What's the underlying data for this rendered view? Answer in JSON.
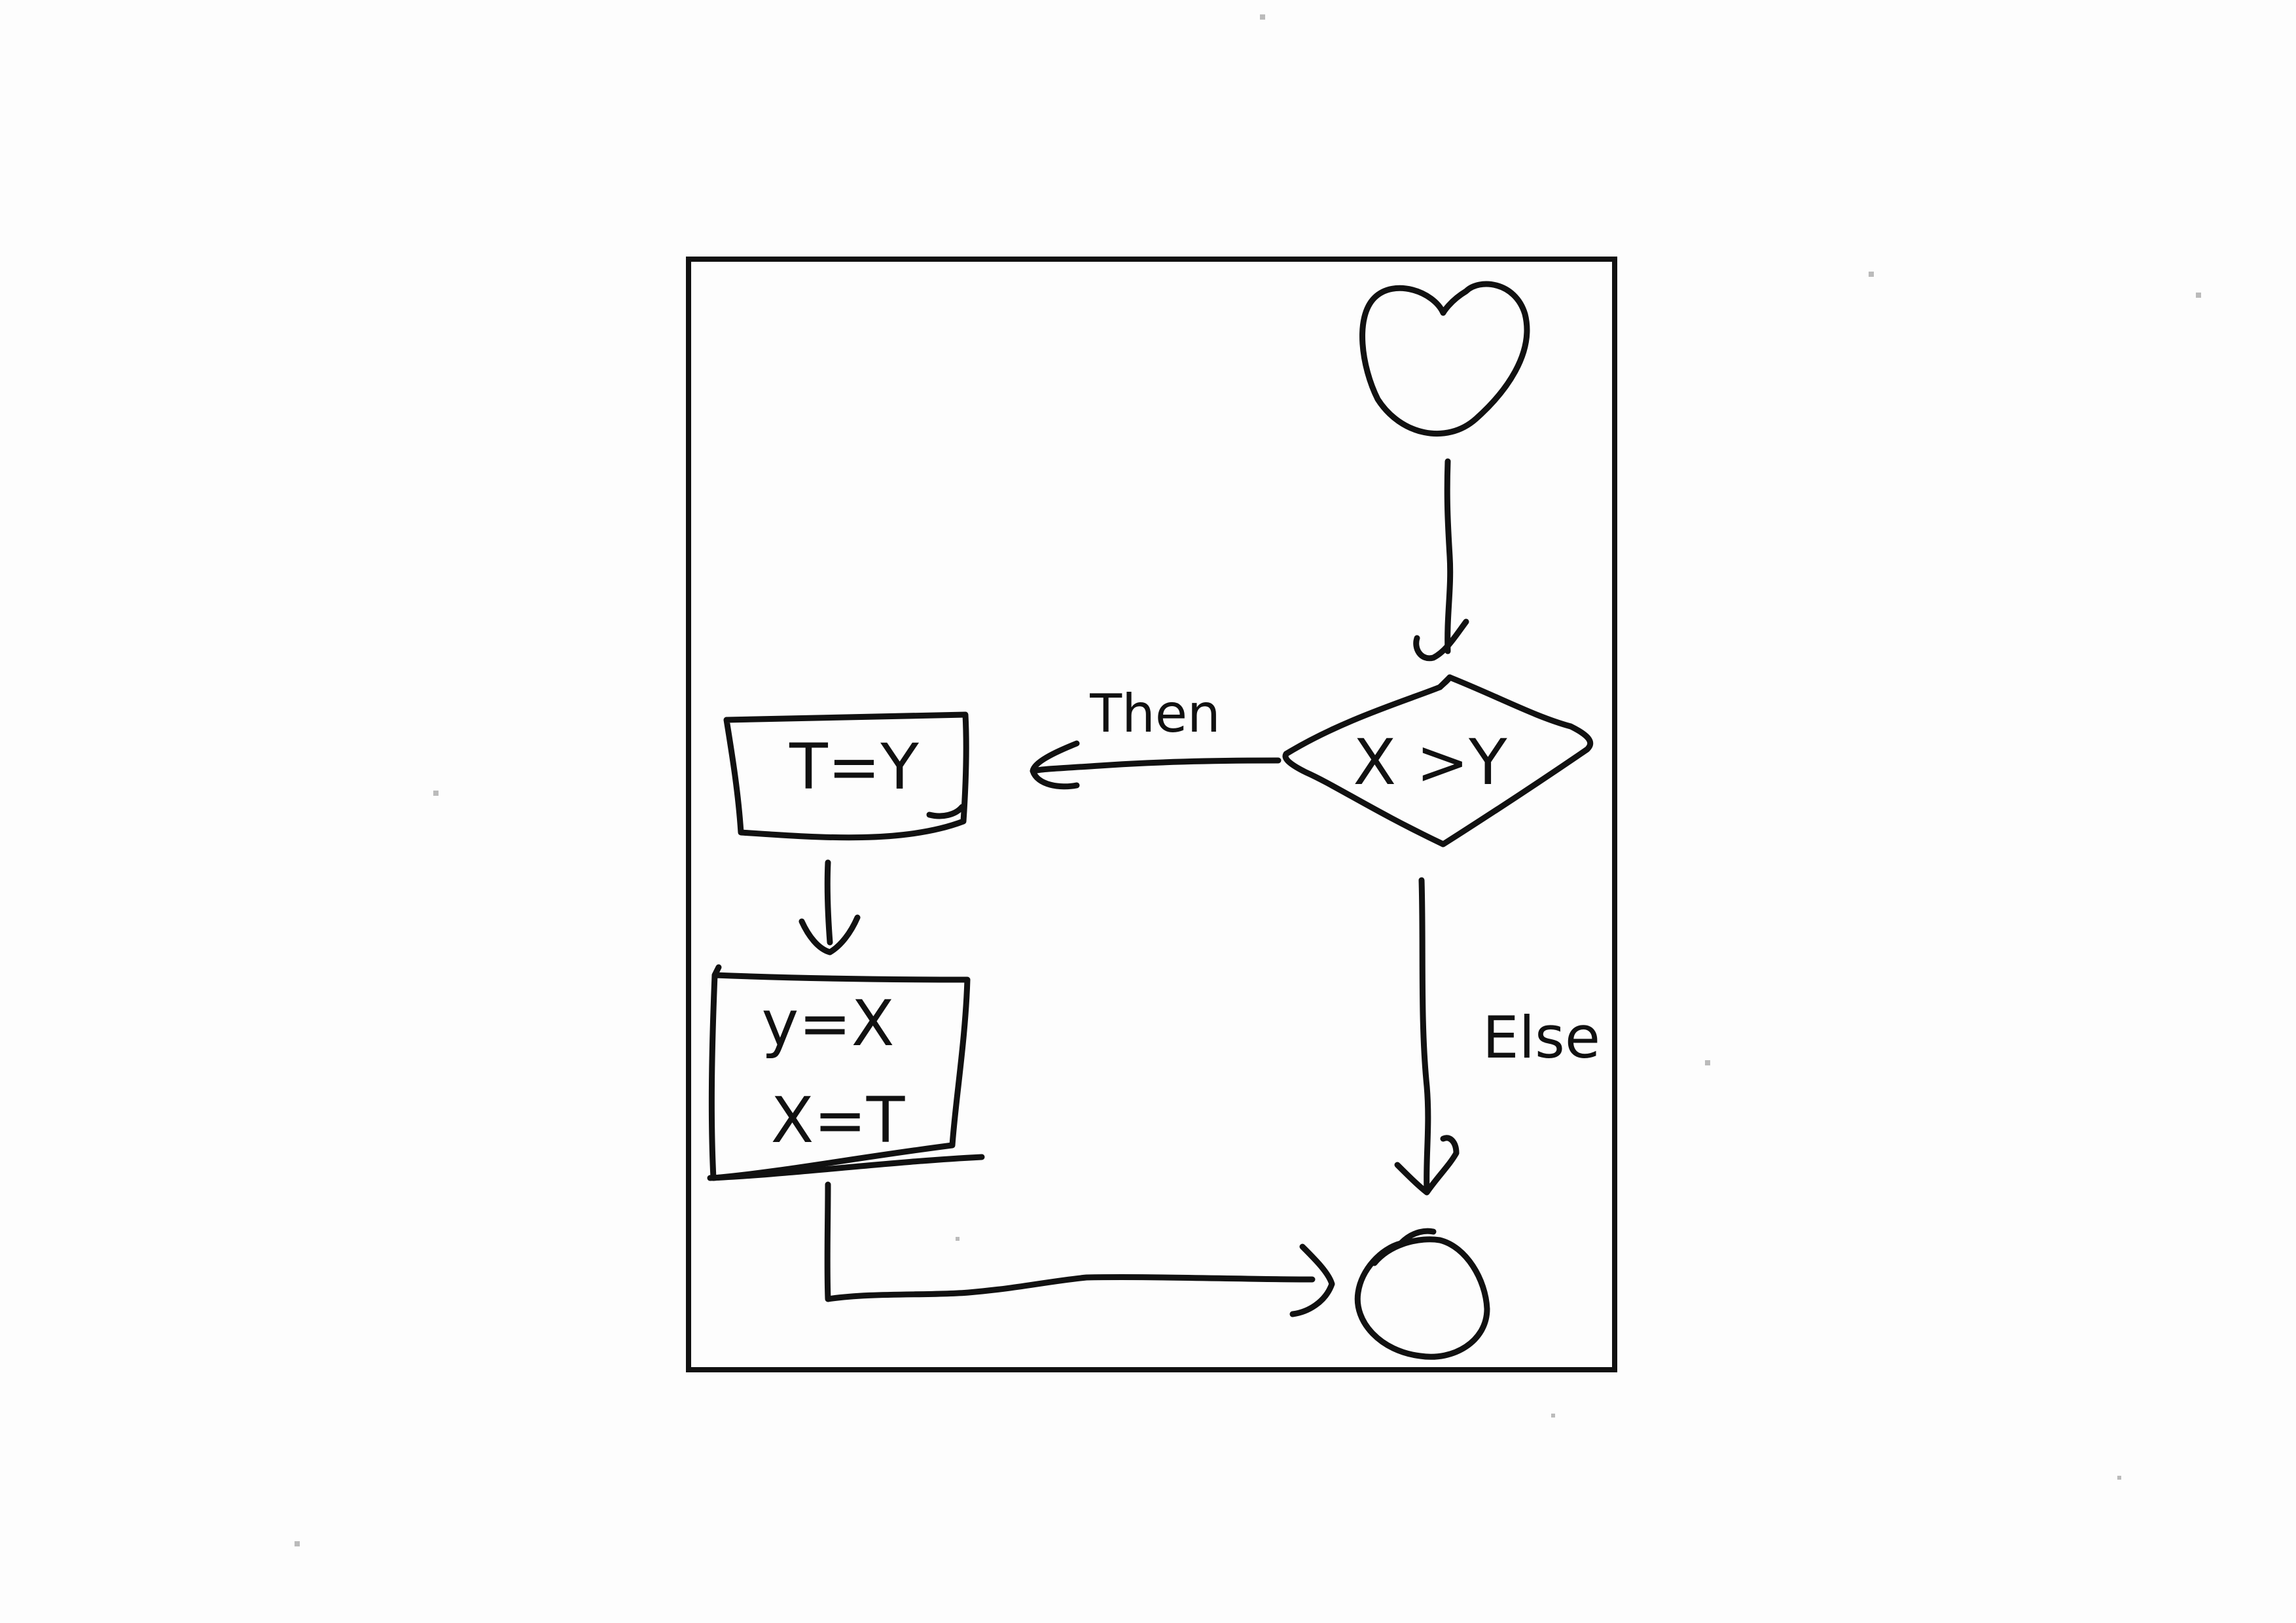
{
  "diagram": {
    "type": "flowchart",
    "nodes": [
      {
        "id": "start",
        "shape": "circle",
        "label": ""
      },
      {
        "id": "decision",
        "shape": "diamond",
        "label": "X >Y"
      },
      {
        "id": "assign_t",
        "shape": "rectangle",
        "label": "T=Y"
      },
      {
        "id": "assign_yx",
        "shape": "rectangle",
        "lines": [
          "y=X",
          "X=T"
        ]
      },
      {
        "id": "end",
        "shape": "circle",
        "label": ""
      }
    ],
    "edges": [
      {
        "from": "start",
        "to": "decision",
        "label": ""
      },
      {
        "from": "decision",
        "to": "assign_t",
        "label": "Then"
      },
      {
        "from": "decision",
        "to": "end",
        "label": "Else"
      },
      {
        "from": "assign_t",
        "to": "assign_yx",
        "label": ""
      },
      {
        "from": "assign_yx",
        "to": "end",
        "label": ""
      }
    ]
  },
  "style": {
    "ink": "#111111",
    "paper": "#fdfdfd"
  }
}
